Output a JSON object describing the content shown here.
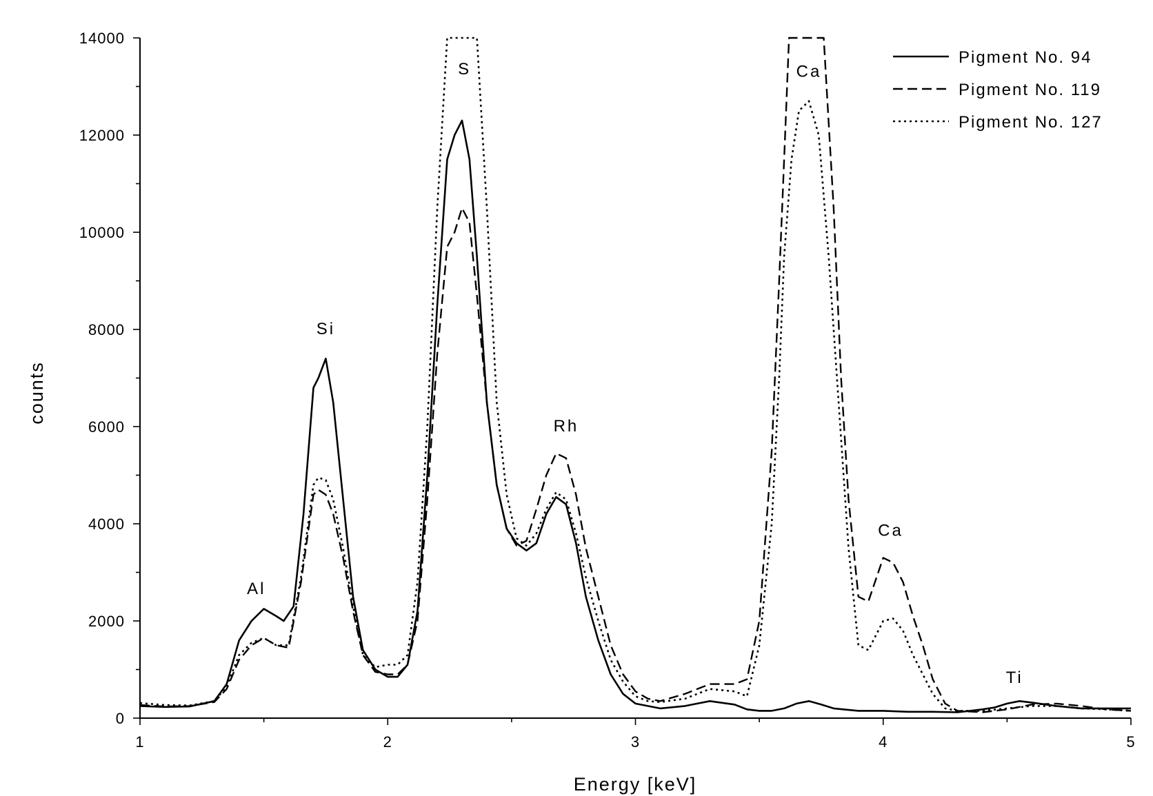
{
  "chart_data": {
    "type": "line",
    "xlabel": "Energy [keV]",
    "ylabel": "counts",
    "xlim": [
      1,
      5
    ],
    "ylim": [
      0,
      14000
    ],
    "x_ticks": [
      1,
      2,
      3,
      4,
      5
    ],
    "y_ticks": [
      0,
      2000,
      4000,
      6000,
      8000,
      10000,
      12000,
      14000
    ],
    "grid": false,
    "legend_position": "top-right",
    "series": [
      {
        "name": "Pigment No. 94",
        "style": "solid",
        "x": [
          1.0,
          1.1,
          1.2,
          1.3,
          1.35,
          1.4,
          1.45,
          1.5,
          1.55,
          1.58,
          1.62,
          1.66,
          1.7,
          1.72,
          1.75,
          1.78,
          1.82,
          1.86,
          1.9,
          1.95,
          2.0,
          2.04,
          2.08,
          2.12,
          2.16,
          2.2,
          2.24,
          2.27,
          2.3,
          2.33,
          2.36,
          2.4,
          2.44,
          2.48,
          2.52,
          2.56,
          2.6,
          2.64,
          2.68,
          2.72,
          2.76,
          2.8,
          2.85,
          2.9,
          2.95,
          3.0,
          3.05,
          3.1,
          3.2,
          3.3,
          3.4,
          3.45,
          3.5,
          3.55,
          3.6,
          3.65,
          3.7,
          3.75,
          3.8,
          3.9,
          4.0,
          4.1,
          4.2,
          4.3,
          4.35,
          4.4,
          4.45,
          4.5,
          4.55,
          4.6,
          4.7,
          4.8,
          4.9,
          5.0
        ],
        "y": [
          250,
          230,
          240,
          350,
          700,
          1600,
          2000,
          2250,
          2100,
          2000,
          2300,
          4200,
          6800,
          7000,
          7400,
          6500,
          4500,
          2500,
          1400,
          1000,
          850,
          850,
          1100,
          2200,
          5000,
          8500,
          11500,
          12000,
          12300,
          11500,
          9500,
          6500,
          4800,
          3900,
          3600,
          3450,
          3600,
          4200,
          4550,
          4400,
          3600,
          2500,
          1600,
          900,
          500,
          300,
          250,
          200,
          250,
          350,
          280,
          180,
          150,
          150,
          200,
          300,
          350,
          280,
          200,
          150,
          150,
          130,
          130,
          120,
          150,
          180,
          220,
          300,
          350,
          320,
          250,
          200,
          200,
          200
        ]
      },
      {
        "name": "Pigment No. 119",
        "style": "dashed",
        "x": [
          1.0,
          1.1,
          1.2,
          1.3,
          1.35,
          1.4,
          1.45,
          1.5,
          1.55,
          1.6,
          1.65,
          1.7,
          1.72,
          1.75,
          1.78,
          1.82,
          1.86,
          1.9,
          1.95,
          2.0,
          2.04,
          2.08,
          2.12,
          2.16,
          2.2,
          2.24,
          2.27,
          2.3,
          2.33,
          2.36,
          2.4,
          2.44,
          2.48,
          2.52,
          2.56,
          2.6,
          2.64,
          2.68,
          2.72,
          2.76,
          2.8,
          2.85,
          2.9,
          2.95,
          3.0,
          3.05,
          3.1,
          3.2,
          3.3,
          3.4,
          3.45,
          3.5,
          3.55,
          3.58,
          3.6,
          3.62,
          3.65,
          3.7,
          3.74,
          3.76,
          3.8,
          3.83,
          3.86,
          3.9,
          3.94,
          4.0,
          4.04,
          4.08,
          4.12,
          4.16,
          4.2,
          4.25,
          4.3,
          4.4,
          4.5,
          4.6,
          4.7,
          4.8,
          4.9,
          5.0
        ],
        "y": [
          270,
          240,
          250,
          330,
          600,
          1200,
          1500,
          1650,
          1500,
          1450,
          2800,
          4600,
          4700,
          4600,
          4200,
          3300,
          2200,
          1300,
          950,
          900,
          900,
          1100,
          2000,
          4500,
          7500,
          9700,
          10000,
          10500,
          10200,
          8700,
          6500,
          4800,
          3900,
          3550,
          3650,
          4300,
          5000,
          5450,
          5350,
          4600,
          3500,
          2500,
          1500,
          900,
          550,
          400,
          350,
          500,
          700,
          700,
          800,
          2000,
          5500,
          9000,
          11500,
          14000,
          14000,
          14000,
          14000,
          14000,
          10500,
          7000,
          4500,
          2500,
          2400,
          3300,
          3200,
          2800,
          2100,
          1500,
          800,
          300,
          150,
          120,
          180,
          280,
          300,
          250,
          180,
          150
        ]
      },
      {
        "name": "Pigment No. 127",
        "style": "dotted",
        "x": [
          1.0,
          1.1,
          1.2,
          1.3,
          1.35,
          1.4,
          1.45,
          1.5,
          1.55,
          1.6,
          1.65,
          1.7,
          1.72,
          1.75,
          1.78,
          1.82,
          1.86,
          1.9,
          1.95,
          2.0,
          2.04,
          2.08,
          2.12,
          2.16,
          2.2,
          2.24,
          2.27,
          2.3,
          2.33,
          2.36,
          2.4,
          2.44,
          2.48,
          2.52,
          2.56,
          2.6,
          2.64,
          2.68,
          2.72,
          2.76,
          2.8,
          2.85,
          2.9,
          2.95,
          3.0,
          3.05,
          3.1,
          3.2,
          3.3,
          3.4,
          3.45,
          3.5,
          3.55,
          3.58,
          3.6,
          3.63,
          3.66,
          3.7,
          3.74,
          3.78,
          3.82,
          3.86,
          3.9,
          3.94,
          4.0,
          4.04,
          4.08,
          4.12,
          4.16,
          4.2,
          4.25,
          4.3,
          4.4,
          4.5,
          4.6,
          4.7,
          4.8,
          4.9,
          5.0
        ],
        "y": [
          310,
          270,
          260,
          350,
          650,
          1300,
          1550,
          1650,
          1500,
          1500,
          2900,
          4800,
          4950,
          4900,
          4500,
          3500,
          2300,
          1300,
          1050,
          1100,
          1100,
          1300,
          2800,
          6000,
          10500,
          14000,
          14000,
          14000,
          14000,
          14000,
          10500,
          6500,
          4600,
          3700,
          3550,
          3800,
          4300,
          4650,
          4500,
          3800,
          2900,
          2000,
          1200,
          750,
          450,
          350,
          330,
          400,
          600,
          550,
          450,
          1500,
          4000,
          7000,
          9500,
          11500,
          12500,
          12700,
          12000,
          9500,
          6500,
          3500,
          1500,
          1400,
          2000,
          2050,
          1800,
          1300,
          900,
          500,
          200,
          150,
          150,
          200,
          250,
          250,
          200,
          180,
          150
        ]
      }
    ],
    "annotations": [
      {
        "text": "Al",
        "x": 1.47,
        "y": 2550
      },
      {
        "text": "Si",
        "x": 1.75,
        "y": 7900
      },
      {
        "text": "S",
        "x": 2.31,
        "y": 13250
      },
      {
        "text": "Rh",
        "x": 2.72,
        "y": 5900
      },
      {
        "text": "Ca",
        "x": 3.7,
        "y": 13200
      },
      {
        "text": "Ca",
        "x": 4.03,
        "y": 3750
      },
      {
        "text": "Ti",
        "x": 4.53,
        "y": 720
      }
    ]
  },
  "colors": {
    "line": "#000000",
    "background": "#ffffff"
  }
}
